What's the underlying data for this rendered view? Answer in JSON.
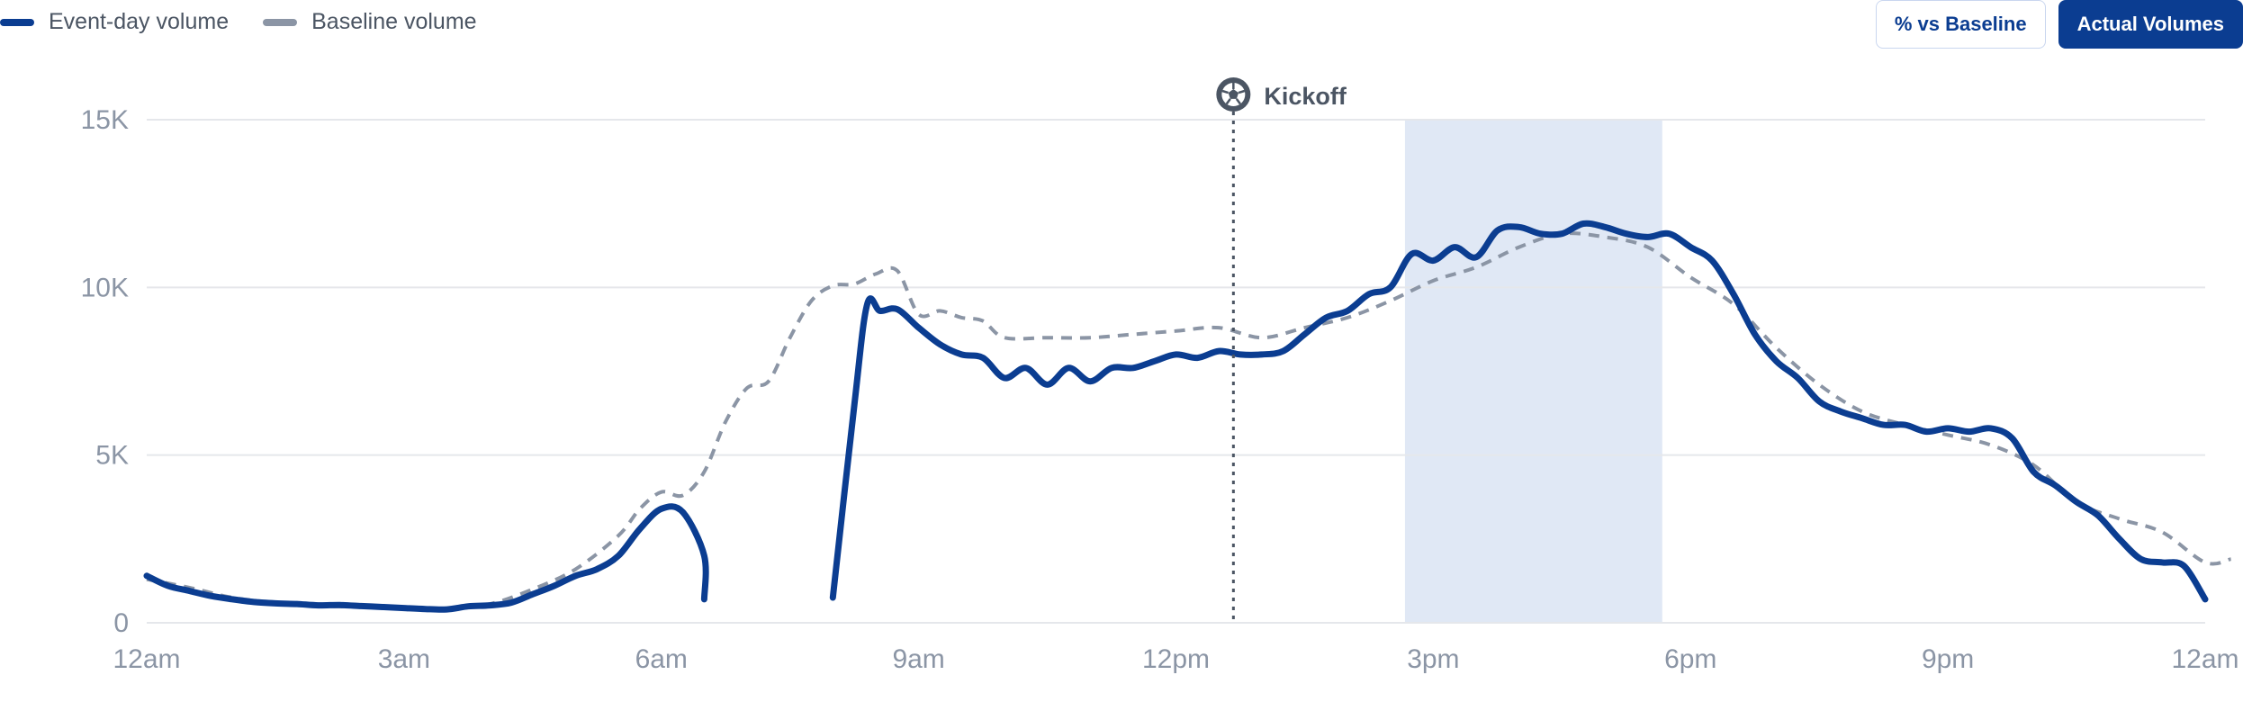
{
  "legend": {
    "event": "Event-day volume",
    "baseline": "Baseline volume"
  },
  "toggles": {
    "pct_label": "% vs Baseline",
    "actual_label": "Actual Volumes"
  },
  "colors": {
    "event": "#0b3d91",
    "baseline": "#8b95a5",
    "highlight": "#e0e8f5",
    "grid": "#e5e7eb",
    "tick": "#8b95a5",
    "marker": "#4b5563"
  },
  "chart_data": {
    "type": "line",
    "xlabel": "",
    "ylabel": "",
    "x_unit": "hours since midnight",
    "xlim": [
      0,
      24
    ],
    "ylim": [
      0,
      15000
    ],
    "x_ticks": [
      {
        "x": 0,
        "label": "12am"
      },
      {
        "x": 3,
        "label": "3am"
      },
      {
        "x": 6,
        "label": "6am"
      },
      {
        "x": 9,
        "label": "9am"
      },
      {
        "x": 12,
        "label": "12pm"
      },
      {
        "x": 15,
        "label": "3pm"
      },
      {
        "x": 18,
        "label": "6pm"
      },
      {
        "x": 21,
        "label": "9pm"
      },
      {
        "x": 24,
        "label": "12am"
      }
    ],
    "y_ticks": [
      {
        "y": 0,
        "label": "0"
      },
      {
        "y": 5000,
        "label": "5K"
      },
      {
        "y": 10000,
        "label": "10K"
      },
      {
        "y": 15000,
        "label": "15K"
      }
    ],
    "grid": true,
    "legend_position": "top-left",
    "annotation": {
      "label": "Kickoff",
      "icon": "soccer-ball-icon",
      "x": 12.67,
      "style": "dotted-vertical-line"
    },
    "highlight_range": [
      14.67,
      17.67
    ],
    "series": [
      {
        "name": "Event-day volume",
        "style": "solid",
        "segments": [
          [
            [
              0,
              1400
            ],
            [
              0.25,
              1100
            ],
            [
              0.5,
              950
            ],
            [
              0.75,
              800
            ],
            [
              1,
              700
            ],
            [
              1.25,
              620
            ],
            [
              1.5,
              580
            ],
            [
              1.75,
              560
            ],
            [
              2,
              520
            ],
            [
              2.25,
              530
            ],
            [
              2.5,
              500
            ],
            [
              2.75,
              470
            ],
            [
              3,
              440
            ],
            [
              3.25,
              410
            ],
            [
              3.5,
              400
            ],
            [
              3.75,
              490
            ],
            [
              4,
              520
            ],
            [
              4.25,
              600
            ],
            [
              4.5,
              850
            ],
            [
              4.75,
              1100
            ],
            [
              5,
              1400
            ],
            [
              5.25,
              1600
            ],
            [
              5.5,
              2000
            ],
            [
              5.75,
              2800
            ],
            [
              6,
              3400
            ],
            [
              6.25,
              3300
            ],
            [
              6.5,
              2000
            ],
            [
              6.5,
              700
            ]
          ],
          [
            [
              8,
              750
            ],
            [
              8.25,
              6500
            ],
            [
              8.4,
              9500
            ],
            [
              8.55,
              9300
            ],
            [
              8.75,
              9350
            ],
            [
              9,
              8800
            ],
            [
              9.25,
              8300
            ],
            [
              9.5,
              8000
            ],
            [
              9.75,
              7900
            ],
            [
              10,
              7300
            ],
            [
              10.25,
              7600
            ],
            [
              10.5,
              7100
            ],
            [
              10.75,
              7600
            ],
            [
              11,
              7200
            ],
            [
              11.25,
              7600
            ],
            [
              11.5,
              7600
            ],
            [
              11.75,
              7800
            ],
            [
              12,
              8000
            ],
            [
              12.25,
              7900
            ],
            [
              12.5,
              8100
            ],
            [
              12.75,
              8000
            ],
            [
              13,
              8000
            ],
            [
              13.25,
              8100
            ],
            [
              13.5,
              8600
            ],
            [
              13.75,
              9100
            ],
            [
              14,
              9300
            ],
            [
              14.25,
              9800
            ],
            [
              14.5,
              10000
            ],
            [
              14.75,
              11000
            ],
            [
              15,
              10800
            ],
            [
              15.25,
              11200
            ],
            [
              15.5,
              10900
            ],
            [
              15.75,
              11700
            ],
            [
              16,
              11800
            ],
            [
              16.25,
              11600
            ],
            [
              16.5,
              11600
            ],
            [
              16.75,
              11900
            ],
            [
              17,
              11800
            ],
            [
              17.25,
              11600
            ],
            [
              17.5,
              11500
            ],
            [
              17.75,
              11600
            ],
            [
              18,
              11200
            ],
            [
              18.25,
              10800
            ],
            [
              18.5,
              9800
            ],
            [
              18.75,
              8600
            ],
            [
              19,
              7800
            ],
            [
              19.25,
              7300
            ],
            [
              19.5,
              6600
            ],
            [
              19.75,
              6300
            ],
            [
              20,
              6100
            ],
            [
              20.25,
              5900
            ],
            [
              20.5,
              5900
            ],
            [
              20.75,
              5700
            ],
            [
              21,
              5800
            ],
            [
              21.25,
              5700
            ],
            [
              21.5,
              5800
            ],
            [
              21.75,
              5500
            ],
            [
              22,
              4500
            ],
            [
              22.25,
              4100
            ],
            [
              22.5,
              3600
            ],
            [
              22.75,
              3200
            ],
            [
              23,
              2500
            ],
            [
              23.25,
              1900
            ],
            [
              23.5,
              1800
            ],
            [
              23.75,
              1700
            ],
            [
              24,
              700
            ]
          ]
        ]
      },
      {
        "name": "Baseline volume",
        "style": "dashed",
        "segments": [
          [
            [
              0,
              1300
            ],
            [
              0.5,
              1050
            ],
            [
              1,
              750
            ],
            [
              1.5,
              600
            ],
            [
              2,
              500
            ],
            [
              2.5,
              480
            ],
            [
              3,
              420
            ],
            [
              3.5,
              420
            ],
            [
              4,
              560
            ],
            [
              4.5,
              1000
            ],
            [
              5,
              1600
            ],
            [
              5.5,
              2600
            ],
            [
              5.75,
              3400
            ],
            [
              6,
              3900
            ],
            [
              6.25,
              3800
            ],
            [
              6.5,
              4500
            ],
            [
              6.75,
              6000
            ],
            [
              7,
              7000
            ],
            [
              7.25,
              7200
            ],
            [
              7.5,
              8500
            ],
            [
              7.75,
              9600
            ],
            [
              8,
              10050
            ],
            [
              8.25,
              10100
            ],
            [
              8.5,
              10400
            ],
            [
              8.75,
              10500
            ],
            [
              9,
              9200
            ],
            [
              9.25,
              9300
            ],
            [
              9.5,
              9100
            ],
            [
              9.75,
              9000
            ],
            [
              10,
              8500
            ],
            [
              10.5,
              8500
            ],
            [
              11,
              8500
            ],
            [
              11.5,
              8600
            ],
            [
              12,
              8700
            ],
            [
              12.5,
              8800
            ],
            [
              13,
              8500
            ],
            [
              13.5,
              8800
            ],
            [
              14,
              9100
            ],
            [
              14.5,
              9600
            ],
            [
              15,
              10200
            ],
            [
              15.5,
              10600
            ],
            [
              16,
              11200
            ],
            [
              16.5,
              11600
            ],
            [
              17,
              11500
            ],
            [
              17.5,
              11200
            ],
            [
              18,
              10300
            ],
            [
              18.5,
              9500
            ],
            [
              19,
              8200
            ],
            [
              19.5,
              7100
            ],
            [
              20,
              6300
            ],
            [
              20.5,
              5900
            ],
            [
              21,
              5600
            ],
            [
              21.5,
              5300
            ],
            [
              22,
              4700
            ],
            [
              22.5,
              3600
            ],
            [
              23,
              3100
            ],
            [
              23.5,
              2700
            ],
            [
              24,
              1800
            ],
            [
              24.3,
              1900
            ]
          ]
        ]
      }
    ]
  }
}
